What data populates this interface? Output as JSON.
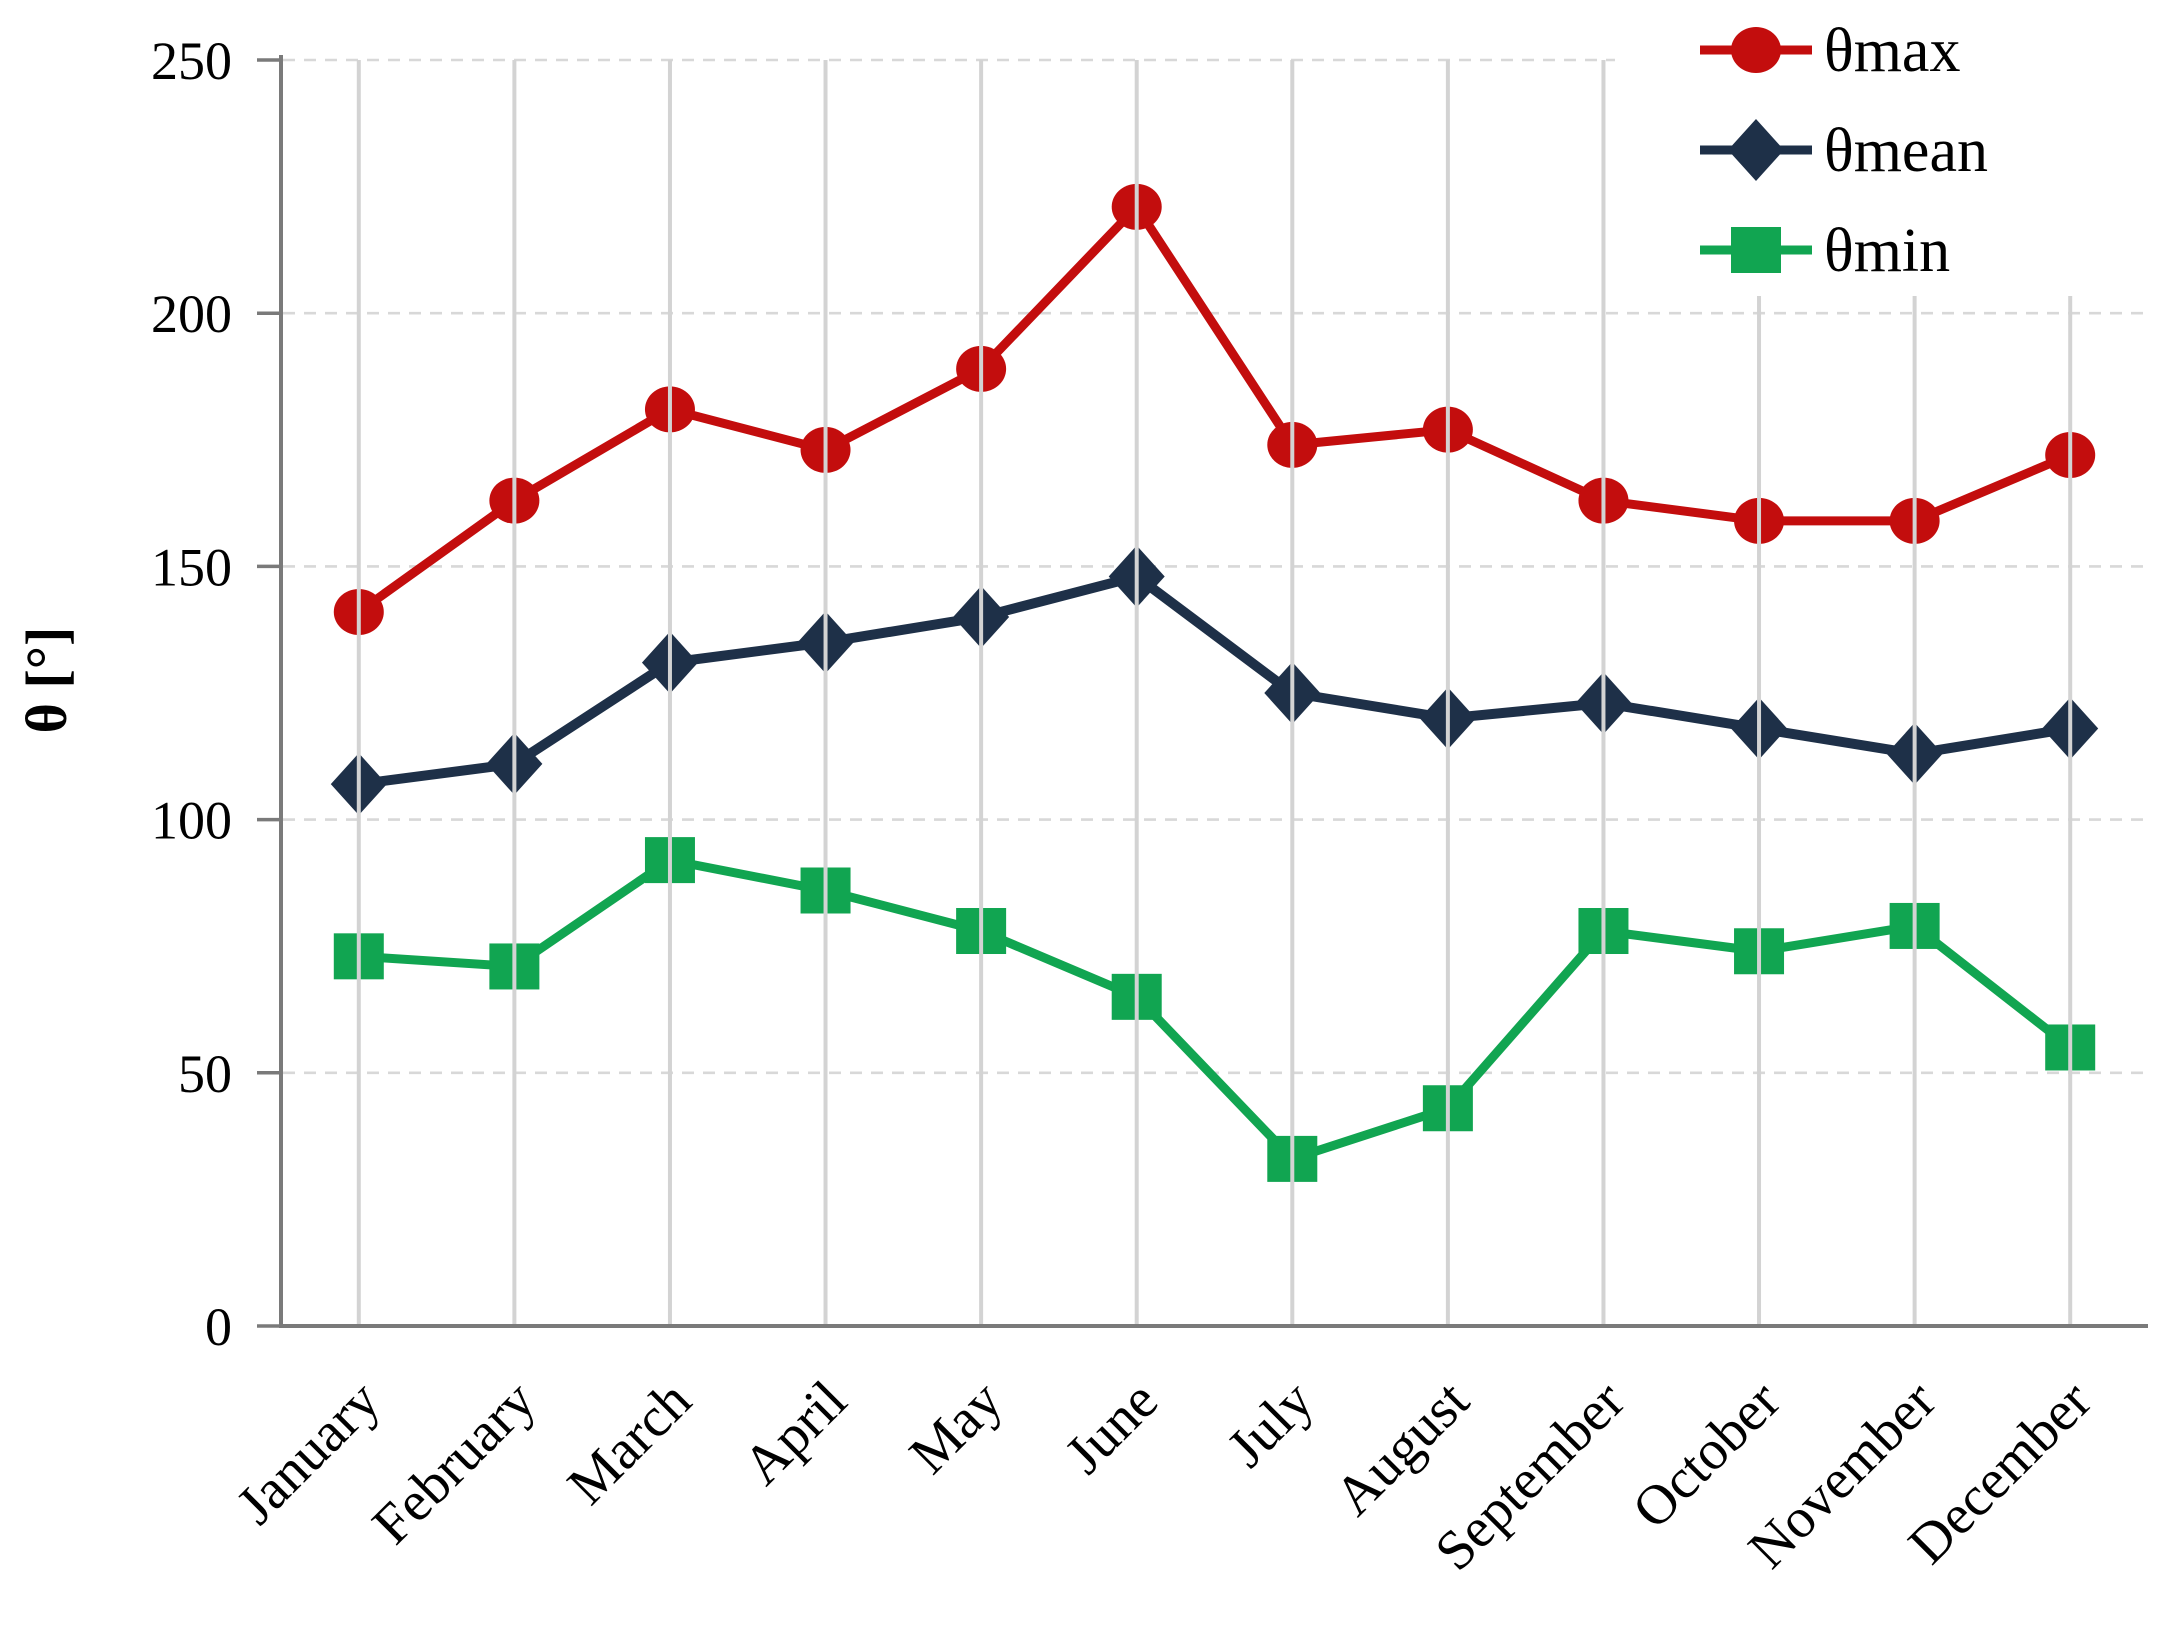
{
  "chart_data": {
    "type": "line",
    "title": "",
    "xlabel": "",
    "ylabel": "θ [°]",
    "ylim": [
      0,
      250
    ],
    "ytick_interval": 50,
    "yticks": [
      0,
      50,
      100,
      150,
      200,
      250
    ],
    "grid": {
      "horizontal": "dashed",
      "vertical": "solid"
    },
    "legend_position": "top-right",
    "categories": [
      "January",
      "February",
      "March",
      "April",
      "May",
      "June",
      "July",
      "August",
      "September",
      "October",
      "November",
      "December"
    ],
    "series": [
      {
        "name": "θmax",
        "marker": "circle",
        "color": "#C30D0D",
        "values": [
          141,
          163,
          181,
          173,
          189,
          221,
          174,
          177,
          163,
          159,
          159,
          172
        ]
      },
      {
        "name": "θmean",
        "marker": "diamond",
        "color": "#1E3048",
        "values": [
          107,
          111,
          131,
          135,
          140,
          148,
          125,
          120,
          123,
          118,
          113,
          118
        ]
      },
      {
        "name": "θmin",
        "marker": "square",
        "color": "#11A551",
        "values": [
          73,
          71,
          92,
          86,
          78,
          65,
          33,
          43,
          78,
          74,
          79,
          55
        ]
      }
    ]
  },
  "colors": {
    "horizontal_gridline": "#D8D8D8",
    "vertical_gridline": "#D3D3D3",
    "axis": "#7A7A7A",
    "text": "#000000",
    "legend_background": "#FFFFFF"
  }
}
